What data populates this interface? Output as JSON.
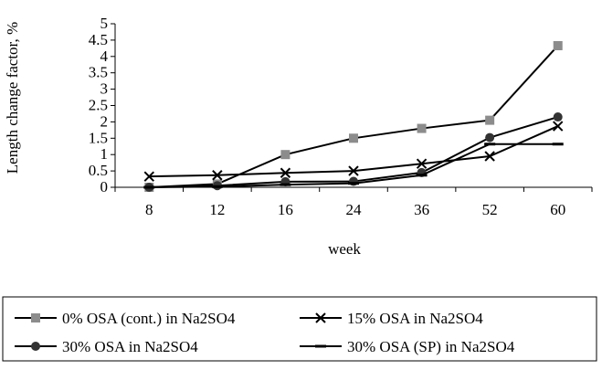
{
  "chart_data": {
    "type": "line",
    "title": "",
    "xlabel": "week",
    "ylabel": "Length change factor, %",
    "categories": [
      "8",
      "12",
      "16",
      "24",
      "36",
      "52",
      "60"
    ],
    "ylim": [
      0,
      5
    ],
    "yticks": [
      "0",
      "0.5",
      "1",
      "1.5",
      "2",
      "2.5",
      "3",
      "3.5",
      "4",
      "4.5",
      "5"
    ],
    "grid": false,
    "legend_position": "bottom",
    "series": [
      {
        "name": "0% OSA (cont.) in Na2SO4",
        "marker": "square",
        "color": "#8c8c8c",
        "values": [
          0.0,
          0.1,
          1.0,
          1.5,
          1.8,
          2.05,
          4.33
        ]
      },
      {
        "name": "15% OSA in Na2SO4",
        "marker": "x",
        "color": "#000000",
        "values": [
          0.33,
          0.37,
          0.44,
          0.5,
          0.72,
          0.95,
          1.87
        ]
      },
      {
        "name": "30% OSA in Na2SO4",
        "marker": "circle",
        "color": "#333333",
        "values": [
          0.0,
          0.05,
          0.17,
          0.18,
          0.45,
          1.52,
          2.15
        ]
      },
      {
        "name": "30% OSA (SP) in Na2SO4",
        "marker": "dash",
        "color": "#000000",
        "values": [
          0.0,
          0.02,
          0.08,
          0.12,
          0.37,
          1.32,
          1.32
        ]
      }
    ]
  }
}
